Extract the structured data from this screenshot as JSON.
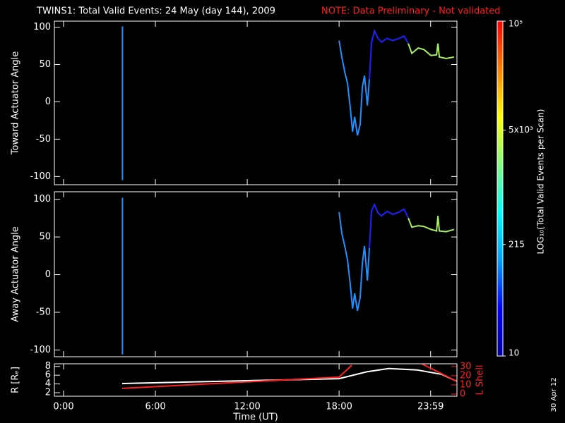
{
  "title": "TWINS1: Total Valid Events: 24 May (day 144), 2009",
  "note": "NOTE: Data Preliminary - Not validated",
  "stamp": "30 Apr 12",
  "chart_data": [
    {
      "type": "line",
      "ylabel": "Toward Actuator Angle",
      "xlim": [
        -0.6,
        25.7
      ],
      "ylim": [
        -111,
        108
      ],
      "yticks": [
        -100,
        -50,
        0,
        50,
        100
      ],
      "series": [
        {
          "color": "#2a8cff",
          "x": [
            3.85,
            3.85
          ],
          "values": [
            -105,
            101
          ]
        },
        {
          "color": "#1e90ff",
          "x": [
            18.0,
            18.18,
            18.37,
            18.55,
            18.74,
            18.88,
            19.02,
            19.2,
            19.38,
            19.52,
            19.66,
            19.85,
            19.98
          ],
          "values": [
            82,
            60,
            40,
            25,
            -10,
            -40,
            -20,
            -45,
            -30,
            20,
            35,
            -5,
            30
          ]
        },
        {
          "color": "#2020ff",
          "x": [
            19.98,
            20.12,
            20.31,
            20.54,
            20.77,
            21.14,
            21.51,
            21.92,
            22.25,
            22.52
          ],
          "values": [
            30,
            80,
            95,
            85,
            80,
            85,
            82,
            85,
            88,
            78
          ]
        },
        {
          "color": "#a8f060",
          "x": [
            22.52,
            22.75,
            23.17,
            23.54,
            24.0,
            24.37,
            24.46,
            24.55,
            25.0,
            25.51
          ],
          "values": [
            78,
            65,
            72,
            70,
            62,
            63,
            78,
            60,
            58,
            60
          ]
        }
      ]
    },
    {
      "type": "line",
      "ylabel": "Away Actuator Angle",
      "xlim": [
        -0.6,
        25.7
      ],
      "ylim": [
        -109,
        110
      ],
      "yticks": [
        -100,
        -50,
        0,
        50,
        100
      ],
      "series": [
        {
          "color": "#2a8cff",
          "x": [
            3.85,
            3.85
          ],
          "values": [
            -106,
            102
          ]
        },
        {
          "color": "#1e90ff",
          "x": [
            18.0,
            18.18,
            18.37,
            18.55,
            18.74,
            18.88,
            19.02,
            19.2,
            19.38,
            19.52,
            19.66,
            19.85,
            19.98
          ],
          "values": [
            83,
            55,
            38,
            20,
            -15,
            -45,
            -25,
            -48,
            -30,
            15,
            38,
            -8,
            35
          ]
        },
        {
          "color": "#2020ff",
          "x": [
            19.98,
            20.12,
            20.31,
            20.54,
            20.77,
            21.14,
            21.51,
            21.92,
            22.25,
            22.52
          ],
          "values": [
            35,
            85,
            93,
            82,
            78,
            84,
            80,
            83,
            87,
            75
          ]
        },
        {
          "color": "#a8f060",
          "x": [
            22.52,
            22.75,
            23.17,
            23.54,
            24.0,
            24.37,
            24.46,
            24.55,
            25.0,
            25.51
          ],
          "values": [
            75,
            63,
            65,
            64,
            60,
            58,
            78,
            58,
            57,
            60
          ]
        }
      ]
    },
    {
      "type": "line",
      "ylabel": "R [Rₑ]",
      "y2label": "L Shell",
      "xlabel": "Time (UT)",
      "xlim": [
        -0.6,
        25.7
      ],
      "ylim": [
        1.2,
        8.6
      ],
      "yticks": [
        2,
        4,
        6,
        8
      ],
      "y2lim": [
        -2.3,
        33
      ],
      "y2ticks": [
        0,
        10,
        20,
        30
      ],
      "xticks": [
        {
          "value": 0,
          "label": "0:00"
        },
        {
          "value": 6,
          "label": "6:00"
        },
        {
          "value": 12,
          "label": "12:00"
        },
        {
          "value": 18,
          "label": "18:00"
        },
        {
          "value": 23.98,
          "label": "23:59"
        }
      ],
      "series": [
        {
          "color": "#ffffff",
          "x": [
            3.83,
            18.0,
            19.85,
            21.23,
            23.08,
            24.69,
            25.7
          ],
          "values": [
            4.1,
            5.2,
            6.8,
            7.5,
            7.2,
            6.2,
            4.6
          ]
        },
        {
          "color": "#ff2020",
          "axis": "y2",
          "x": [
            3.83,
            18.0,
            18.83,
            null,
            23.4,
            25.7
          ],
          "values": [
            6.2,
            18.5,
            31.5,
            null,
            33,
            13.8
          ]
        }
      ]
    },
    {
      "type": "colorbar",
      "label": "LOG₁₀(Total Valid Events per Scan)",
      "log": true,
      "lim": [
        10,
        100000
      ],
      "ticks": [
        10,
        215,
        {
          "value": 5000,
          "label": "5x10³"
        },
        {
          "value": 100000,
          "label": "10⁵"
        }
      ],
      "colors": [
        "#0000a0",
        "#0000ff",
        "#00a0ff",
        "#00ffff",
        "#80ff80",
        "#ffff00",
        "#ff8000",
        "#ff0000"
      ]
    }
  ]
}
